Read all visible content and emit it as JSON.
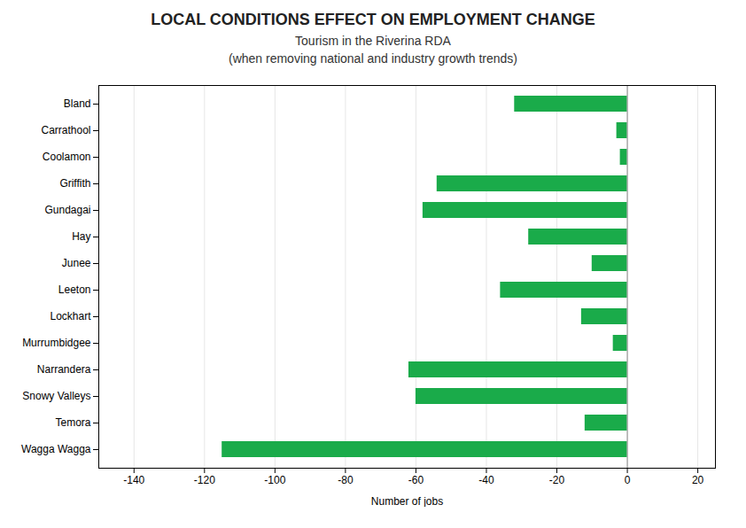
{
  "chart_data": {
    "type": "bar",
    "orientation": "horizontal",
    "title": "LOCAL CONDITIONS EFFECT ON EMPLOYMENT CHANGE",
    "subtitle": "Tourism in the Riverina RDA\n(when removing national and industry growth trends)",
    "xlabel": "Number of jobs",
    "categories": [
      "Bland",
      "Carrathool",
      "Coolamon",
      "Griffith",
      "Gundagai",
      "Hay",
      "Junee",
      "Leeton",
      "Lockhart",
      "Murrumbidgee",
      "Narrandera",
      "Snowy Valleys",
      "Temora",
      "Wagga Wagga"
    ],
    "values": [
      -32,
      -3,
      -2,
      -54,
      -58,
      -28,
      -10,
      -36,
      -13,
      -4,
      -62,
      -60,
      -12,
      -115
    ],
    "color": "#1aab4a",
    "xlim": [
      -150,
      25
    ],
    "xticks": [
      -140,
      -120,
      -100,
      -80,
      -60,
      -40,
      -20,
      0,
      20
    ],
    "grid": true
  }
}
